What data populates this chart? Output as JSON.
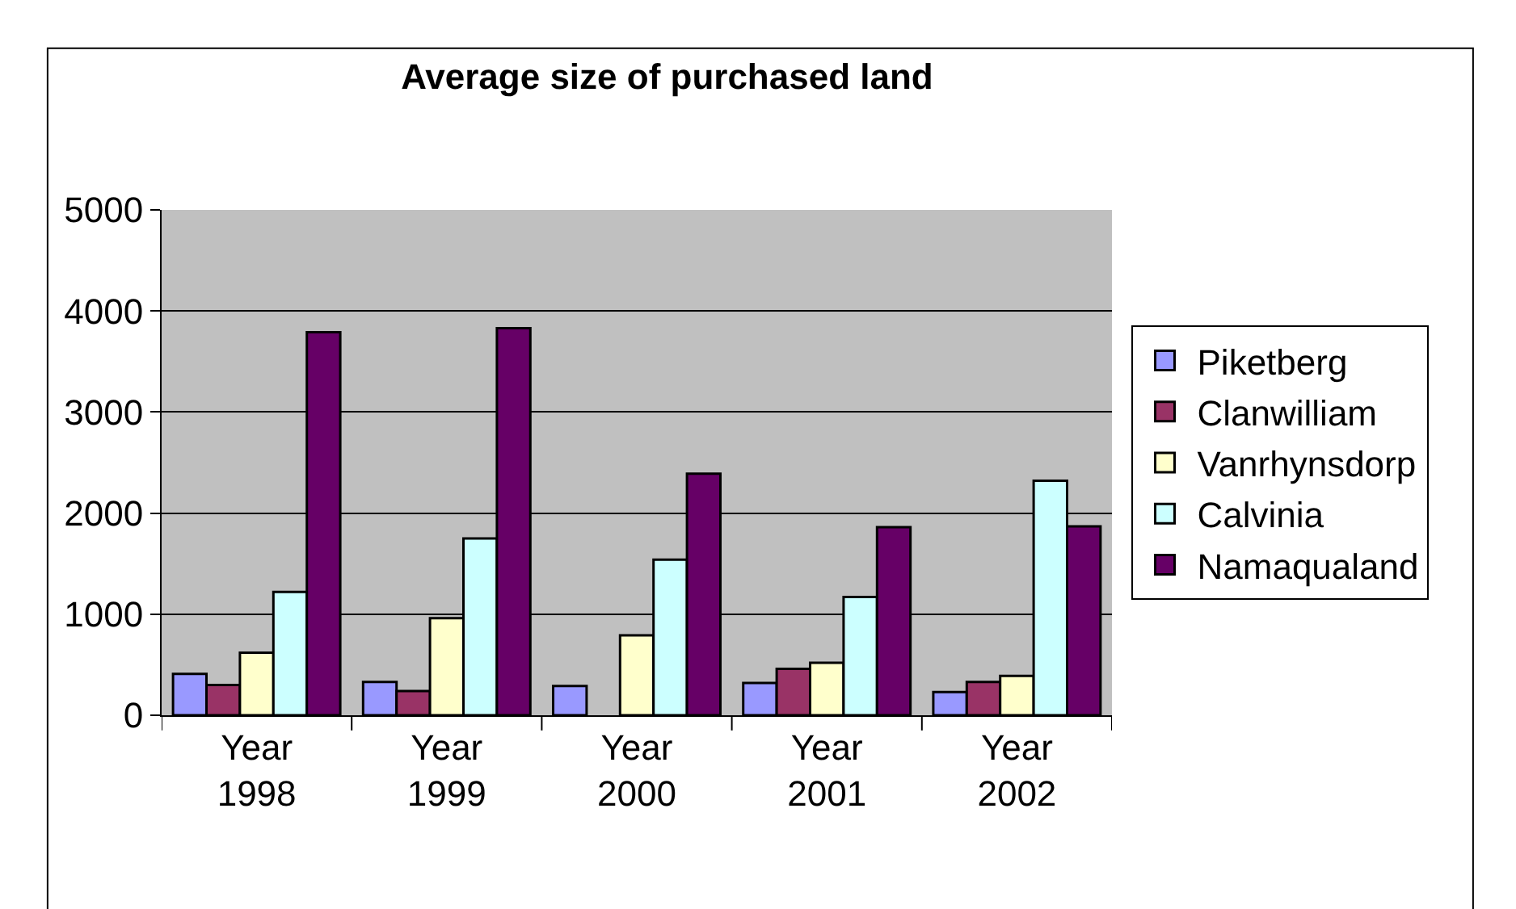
{
  "chart_data": {
    "type": "bar",
    "title": "Average size of purchased land",
    "categories": [
      "Year 1998",
      "Year 1999",
      "Year 2000",
      "Year 2001",
      "Year 2002"
    ],
    "series": [
      {
        "name": "Piketberg",
        "color": "#9999ff",
        "values": [
          410,
          330,
          290,
          320,
          230
        ]
      },
      {
        "name": "Clanwilliam",
        "color": "#993366",
        "values": [
          300,
          240,
          null,
          460,
          330
        ]
      },
      {
        "name": "Vanrhynsdorp",
        "color": "#ffffcc",
        "values": [
          620,
          960,
          790,
          520,
          390
        ]
      },
      {
        "name": "Calvinia",
        "color": "#ccffff",
        "values": [
          1220,
          1750,
          1540,
          1170,
          2320
        ]
      },
      {
        "name": "Namaqualand",
        "color": "#660066",
        "values": [
          3790,
          3830,
          2390,
          1860,
          1870
        ]
      }
    ],
    "ylim": [
      0,
      5000
    ],
    "yticks": [
      0,
      1000,
      2000,
      3000,
      4000,
      5000
    ],
    "grid": "y",
    "legend": "right"
  }
}
